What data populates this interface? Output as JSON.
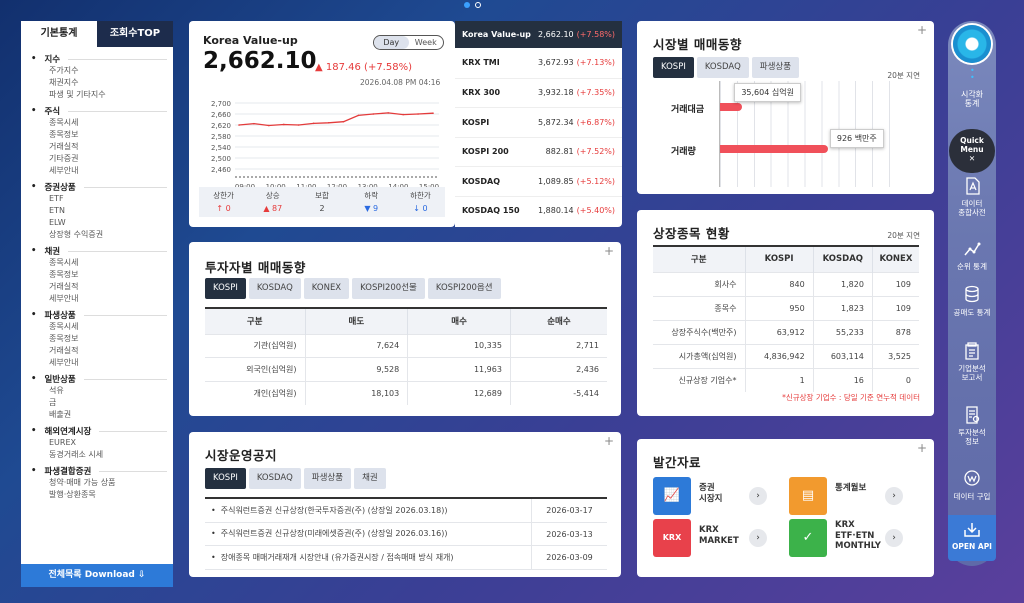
{
  "pager": {
    "dots": 2
  },
  "left_sidebar": {
    "tabs": [
      "기본통계",
      "조회수TOP"
    ],
    "sections": [
      {
        "title": "지수",
        "items": [
          "주가지수",
          "채권지수",
          "파생 및 기타지수"
        ]
      },
      {
        "title": "주식",
        "items": [
          "종목시세",
          "종목정보",
          "거래실적",
          "기타증권",
          "세부안내"
        ]
      },
      {
        "title": "증권상품",
        "items": [
          "ETF",
          "ETN",
          "ELW",
          "상장형 수익증권"
        ]
      },
      {
        "title": "채권",
        "items": [
          "종목시세",
          "종목정보",
          "거래실적",
          "세부안내"
        ]
      },
      {
        "title": "파생상품",
        "items": [
          "종목시세",
          "종목정보",
          "거래실적",
          "세부안내"
        ]
      },
      {
        "title": "일반상품",
        "items": [
          "석유",
          "금",
          "배출권"
        ]
      },
      {
        "title": "해외연계시장",
        "items": [
          "EUREX",
          "동경거래소 시세"
        ]
      },
      {
        "title": "파생결합증권",
        "items": [
          "청약·매매 가능 상품",
          "발행·상환종목"
        ]
      }
    ],
    "download": "전체목록 Download"
  },
  "index_card": {
    "name": "Korea Value-up",
    "value": "2,662.10",
    "change": "▲ 187.46 (+7.58%)",
    "datetime": "2026.04.08 PM 04:16",
    "toggle": [
      "Day",
      "Week"
    ],
    "yticks": [
      "2,700",
      "2,660",
      "2,620",
      "2,580",
      "2,540",
      "2,500",
      "2,460"
    ],
    "xticks": [
      "09:00",
      "10:00",
      "11:00",
      "12:00",
      "13:00",
      "14:00",
      "15:00"
    ],
    "breadth": [
      {
        "label": "상한가",
        "value": "↑ 0",
        "color": "red"
      },
      {
        "label": "상승",
        "value": "▲ 87",
        "color": "red"
      },
      {
        "label": "보합",
        "value": "2",
        "color": "gray"
      },
      {
        "label": "하락",
        "value": "▼ 9",
        "color": "blue"
      },
      {
        "label": "하한가",
        "value": "↓ 0",
        "color": "blue"
      }
    ]
  },
  "chart_data": {
    "type": "line",
    "x": [
      "09:00",
      "09:30",
      "10:00",
      "10:30",
      "11:00",
      "11:30",
      "12:00",
      "12:30",
      "13:00",
      "13:30",
      "14:00",
      "14:30",
      "15:00",
      "15:30"
    ],
    "values": [
      2620,
      2625,
      2618,
      2622,
      2620,
      2626,
      2628,
      2632,
      2655,
      2660,
      2664,
      2658,
      2660,
      2663
    ],
    "ylim": [
      2460,
      2700
    ],
    "color": "#e33b3b"
  },
  "index_list": [
    {
      "name": "Korea Value-up",
      "value": "2,662.10",
      "change": "(+7.58%)"
    },
    {
      "name": "KRX TMI",
      "value": "3,672.93",
      "change": "(+7.13%)"
    },
    {
      "name": "KRX 300",
      "value": "3,932.18",
      "change": "(+7.35%)"
    },
    {
      "name": "KOSPI",
      "value": "5,872.34",
      "change": "(+6.87%)"
    },
    {
      "name": "KOSPI 200",
      "value": "882.81",
      "change": "(+7.52%)"
    },
    {
      "name": "KOSDAQ",
      "value": "1,089.85",
      "change": "(+5.12%)"
    },
    {
      "name": "KOSDAQ 150",
      "value": "1,880.14",
      "change": "(+5.40%)"
    }
  ],
  "market_trend": {
    "title": "시장별 매매동향",
    "tabs": [
      "KOSPI",
      "KOSDAQ",
      "파생상품"
    ],
    "delay": "20분 지연",
    "rows": [
      {
        "label": "거래대금",
        "tooltip": "35,604 십억원",
        "fill": 0.12
      },
      {
        "label": "거래량",
        "tooltip": "926 백만주",
        "fill": 0.58
      }
    ]
  },
  "investor": {
    "title": "투자자별 매매동향",
    "tabs": [
      "KOSPI",
      "KOSDAQ",
      "KONEX",
      "KOSPI200선물",
      "KOSPI200옵션"
    ],
    "headers": [
      "구분",
      "매도",
      "매수",
      "순매수"
    ],
    "rows": [
      [
        "기관(십억원)",
        "7,624",
        "10,335",
        "2,711"
      ],
      [
        "외국인(십억원)",
        "9,528",
        "11,963",
        "2,436"
      ],
      [
        "개인(십억원)",
        "18,103",
        "12,689",
        "-5,414"
      ]
    ]
  },
  "listing": {
    "title": "상장종목 현황",
    "delay": "20분 지연",
    "headers": [
      "구분",
      "KOSPI",
      "KOSDAQ",
      "KONEX"
    ],
    "rows": [
      [
        "회사수",
        "840",
        "1,820",
        "109"
      ],
      [
        "종목수",
        "950",
        "1,823",
        "109"
      ],
      [
        "상장주식수(백만주)",
        "63,912",
        "55,233",
        "878"
      ],
      [
        "시가총액(십억원)",
        "4,836,942",
        "603,114",
        "3,525"
      ],
      [
        "신규상장 기업수*",
        "1",
        "16",
        "0"
      ]
    ],
    "note": "*신규상장 기업수 : 당일 기준 연누적 데이터"
  },
  "notice": {
    "title": "시장운영공지",
    "tabs": [
      "KOSPI",
      "KOSDAQ",
      "파생상품",
      "채권"
    ],
    "rows": [
      {
        "text": "주식워런트증권 신규상장(한국투자증권(주) (상장일 2026.03.18))",
        "date": "2026-03-17"
      },
      {
        "text": "주식워런트증권 신규상장(미래에셋증권(주) (상장일 2026.03.16))",
        "date": "2026-03-13"
      },
      {
        "text": "장애종목 매매거래재개 시장안내 (유가증권시장 / 접속매매 방식 재개)",
        "date": "2026-03-09"
      }
    ]
  },
  "publications": {
    "title": "발간자료",
    "items": [
      {
        "label": "증권\n시장지",
        "color": "#2d7ad8",
        "icon": "chart-book-icon"
      },
      {
        "label": "통계월보",
        "color": "#f29a2e",
        "icon": "monthly-stats-icon"
      },
      {
        "label": "KRX\nMARKET",
        "color": "#e8414b",
        "icon": "krx-market-icon"
      },
      {
        "label": "KRX\nETF·ETN\nMONTHLY",
        "color": "#3cb24a",
        "icon": "etf-monthly-icon"
      }
    ]
  },
  "right_sidebar": {
    "visual": "시각화\n통계",
    "quick": "Quick\nMenu",
    "items": [
      {
        "label": "데이터\n종합사전",
        "icon": "dictionary-icon"
      },
      {
        "label": "순위 통계",
        "icon": "rank-chart-icon"
      },
      {
        "label": "공매도 통계",
        "icon": "database-icon"
      },
      {
        "label": "기업분석\n보고서",
        "icon": "report-icon"
      },
      {
        "label": "투자분석\n정보",
        "icon": "analysis-icon"
      },
      {
        "label": "데이터 구입",
        "icon": "purchase-icon"
      }
    ],
    "api": "OPEN API"
  }
}
